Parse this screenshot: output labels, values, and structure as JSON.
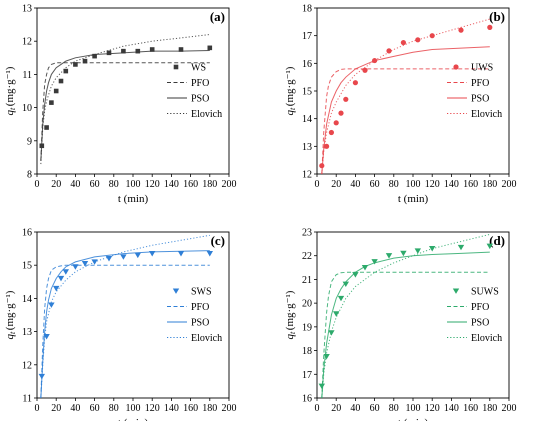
{
  "chart_data": [
    {
      "panel": "(a)",
      "type": "scatter",
      "xlabel": "t (min)",
      "ylabel_main": "q",
      "ylabel_sub": "t",
      "ylabel_unit": "(mg·g⁻¹)",
      "xlim": [
        0,
        200
      ],
      "ylim": [
        8,
        13
      ],
      "xticks": [
        0,
        20,
        40,
        60,
        80,
        100,
        120,
        140,
        160,
        180,
        200
      ],
      "yticks": [
        8,
        9,
        10,
        11,
        12,
        13
      ],
      "legend_position": "right-middle",
      "marker": "square",
      "color": "#3a3a3a",
      "series": [
        {
          "name": "WS",
          "kind": "points",
          "x": [
            5,
            10,
            15,
            20,
            25,
            30,
            40,
            50,
            60,
            75,
            90,
            105,
            120,
            150,
            180
          ],
          "y": [
            8.85,
            9.4,
            10.15,
            10.5,
            10.8,
            11.1,
            11.3,
            11.4,
            11.55,
            11.65,
            11.7,
            11.7,
            11.75,
            11.75,
            11.8
          ]
        },
        {
          "name": "PFO",
          "kind": "dashed",
          "x": [
            4,
            6,
            8,
            10,
            12,
            15,
            20,
            25,
            30,
            40,
            60,
            90,
            120,
            150,
            180
          ],
          "y": [
            8.4,
            9.9,
            10.7,
            11.0,
            11.2,
            11.3,
            11.35,
            11.35,
            11.35,
            11.35,
            11.35,
            11.35,
            11.35,
            11.35,
            11.35
          ]
        },
        {
          "name": "PSO",
          "kind": "solid",
          "x": [
            4,
            6,
            8,
            10,
            12,
            15,
            20,
            25,
            30,
            40,
            60,
            90,
            120,
            150,
            180
          ],
          "y": [
            8.4,
            9.5,
            10.1,
            10.5,
            10.75,
            11.0,
            11.2,
            11.3,
            11.4,
            11.5,
            11.6,
            11.65,
            11.7,
            11.7,
            11.72
          ]
        },
        {
          "name": "Elovich",
          "kind": "dotted",
          "x": [
            4,
            6,
            8,
            10,
            15,
            20,
            30,
            40,
            60,
            90,
            120,
            150,
            180
          ],
          "y": [
            8.3,
            9.4,
            9.9,
            10.2,
            10.65,
            10.9,
            11.2,
            11.4,
            11.6,
            11.85,
            12.0,
            12.1,
            12.2
          ]
        }
      ]
    },
    {
      "panel": "(b)",
      "type": "scatter",
      "xlabel": "t (min)",
      "ylabel_main": "q",
      "ylabel_sub": "t",
      "ylabel_unit": "(mg·g⁻¹)",
      "xlim": [
        0,
        200
      ],
      "ylim": [
        12,
        18
      ],
      "xticks": [
        0,
        20,
        40,
        60,
        80,
        100,
        120,
        140,
        160,
        180,
        200
      ],
      "yticks": [
        12,
        13,
        14,
        15,
        16,
        17,
        18
      ],
      "legend_position": "right-middle",
      "marker": "circle",
      "color": "#e8474c",
      "series": [
        {
          "name": "UWS",
          "kind": "points",
          "x": [
            5,
            10,
            15,
            20,
            25,
            30,
            40,
            50,
            60,
            75,
            90,
            105,
            120,
            150,
            180
          ],
          "y": [
            12.3,
            13.0,
            13.5,
            13.85,
            14.2,
            14.7,
            15.3,
            15.75,
            16.1,
            16.45,
            16.75,
            16.85,
            17.0,
            17.2,
            17.3
          ]
        },
        {
          "name": "PFO",
          "kind": "dashed",
          "x": [
            5,
            7,
            10,
            12,
            15,
            20,
            25,
            30,
            40,
            60,
            90,
            120,
            150,
            180
          ],
          "y": [
            12.0,
            13.5,
            14.8,
            15.2,
            15.5,
            15.7,
            15.78,
            15.8,
            15.8,
            15.8,
            15.8,
            15.8,
            15.8,
            15.8
          ]
        },
        {
          "name": "PSO",
          "kind": "solid",
          "x": [
            5,
            7,
            10,
            15,
            20,
            25,
            30,
            40,
            50,
            60,
            80,
            100,
            120,
            150,
            180
          ],
          "y": [
            12.0,
            12.9,
            13.8,
            14.6,
            15.0,
            15.3,
            15.5,
            15.8,
            15.95,
            16.1,
            16.25,
            16.4,
            16.5,
            16.55,
            16.6
          ]
        },
        {
          "name": "Elovich",
          "kind": "dotted",
          "x": [
            5,
            7,
            10,
            15,
            20,
            30,
            40,
            60,
            80,
            100,
            120,
            150,
            180
          ],
          "y": [
            12.0,
            12.8,
            13.5,
            14.2,
            14.6,
            15.2,
            15.6,
            16.1,
            16.5,
            16.8,
            17.0,
            17.3,
            17.6
          ]
        }
      ]
    },
    {
      "panel": "(c)",
      "type": "scatter",
      "xlabel": "t (min)",
      "ylabel_main": "q",
      "ylabel_sub": "t",
      "ylabel_unit": "(mg·g⁻¹)",
      "xlim": [
        0,
        200
      ],
      "ylim": [
        11,
        16
      ],
      "xticks": [
        0,
        20,
        40,
        60,
        80,
        100,
        120,
        140,
        160,
        180,
        200
      ],
      "yticks": [
        11,
        12,
        13,
        14,
        15,
        16
      ],
      "legend_position": "right-middle",
      "marker": "triangle-down",
      "color": "#2f7fd6",
      "series": [
        {
          "name": "SWS",
          "kind": "points",
          "x": [
            5,
            10,
            15,
            20,
            25,
            30,
            40,
            50,
            60,
            75,
            90,
            105,
            120,
            150,
            180
          ],
          "y": [
            11.65,
            12.85,
            13.8,
            14.3,
            14.6,
            14.8,
            14.95,
            15.05,
            15.1,
            15.2,
            15.25,
            15.3,
            15.35,
            15.35,
            15.35
          ]
        },
        {
          "name": "PFO",
          "kind": "dashed",
          "x": [
            4,
            6,
            8,
            10,
            12,
            15,
            20,
            25,
            30,
            40,
            60,
            90,
            120,
            150,
            180
          ],
          "y": [
            11.0,
            12.6,
            13.7,
            14.3,
            14.6,
            14.85,
            14.95,
            14.98,
            15.0,
            15.0,
            15.0,
            15.0,
            15.0,
            15.0,
            15.0
          ]
        },
        {
          "name": "PSO",
          "kind": "solid",
          "x": [
            4,
            6,
            8,
            10,
            12,
            15,
            20,
            25,
            30,
            40,
            60,
            90,
            120,
            150,
            180
          ],
          "y": [
            11.0,
            12.1,
            13.0,
            13.6,
            13.95,
            14.3,
            14.6,
            14.8,
            14.95,
            15.1,
            15.25,
            15.35,
            15.4,
            15.42,
            15.44
          ]
        },
        {
          "name": "Elovich",
          "kind": "dotted",
          "x": [
            4,
            6,
            8,
            10,
            15,
            20,
            30,
            40,
            60,
            90,
            120,
            150,
            180
          ],
          "y": [
            11.0,
            12.0,
            12.8,
            13.3,
            13.9,
            14.2,
            14.55,
            14.8,
            15.1,
            15.4,
            15.6,
            15.75,
            15.9
          ]
        }
      ]
    },
    {
      "panel": "(d)",
      "type": "scatter",
      "xlabel": "t (min)",
      "ylabel_main": "q",
      "ylabel_sub": "t",
      "ylabel_unit": "(mg·g⁻¹)",
      "xlim": [
        0,
        200
      ],
      "ylim": [
        16,
        23
      ],
      "xticks": [
        0,
        20,
        40,
        60,
        80,
        100,
        120,
        140,
        160,
        180,
        200
      ],
      "yticks": [
        16,
        17,
        18,
        19,
        20,
        21,
        22,
        23
      ],
      "legend_position": "right-middle",
      "marker": "triangle-down",
      "color": "#2daa6b",
      "series": [
        {
          "name": "SUWS",
          "kind": "points",
          "x": [
            5,
            10,
            15,
            20,
            25,
            30,
            40,
            50,
            60,
            75,
            90,
            105,
            120,
            150,
            180
          ],
          "y": [
            16.5,
            17.75,
            18.75,
            19.55,
            20.2,
            20.8,
            21.2,
            21.5,
            21.75,
            22.0,
            22.1,
            22.2,
            22.3,
            22.35,
            22.4
          ]
        },
        {
          "name": "PFO",
          "kind": "dashed",
          "x": [
            5,
            7,
            10,
            12,
            15,
            20,
            25,
            30,
            40,
            60,
            90,
            120,
            150,
            180
          ],
          "y": [
            16.0,
            17.8,
            19.6,
            20.3,
            20.9,
            21.2,
            21.28,
            21.3,
            21.3,
            21.3,
            21.3,
            21.3,
            21.3,
            21.3
          ]
        },
        {
          "name": "PSO",
          "kind": "solid",
          "x": [
            5,
            7,
            10,
            15,
            20,
            25,
            30,
            40,
            50,
            60,
            80,
            100,
            120,
            150,
            180
          ],
          "y": [
            16.0,
            17.2,
            18.3,
            19.5,
            20.2,
            20.6,
            20.9,
            21.3,
            21.55,
            21.7,
            21.9,
            22.0,
            22.05,
            22.1,
            22.15
          ]
        },
        {
          "name": "Elovich",
          "kind": "dotted",
          "x": [
            5,
            7,
            10,
            15,
            20,
            30,
            40,
            60,
            80,
            100,
            120,
            150,
            180
          ],
          "y": [
            16.0,
            17.0,
            17.9,
            18.8,
            19.4,
            20.2,
            20.7,
            21.3,
            21.7,
            22.0,
            22.3,
            22.6,
            22.9
          ]
        }
      ]
    }
  ]
}
